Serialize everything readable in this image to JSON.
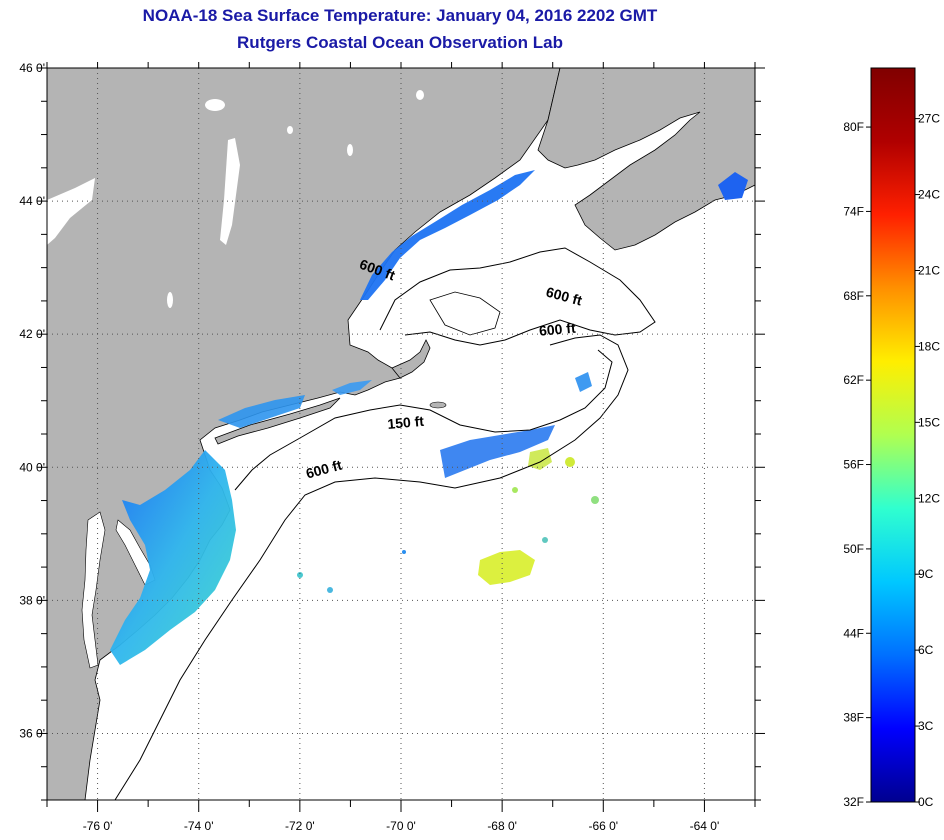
{
  "title": {
    "line1": "NOAA-18 Sea Surface Temperature:  January 04, 2016 2202 GMT",
    "line2": "Rutgers Coastal Ocean Observation Lab"
  },
  "map": {
    "lon_range": [
      -77,
      -63
    ],
    "lat_range": [
      35,
      46
    ],
    "lon_ticks": [
      {
        "lon": -76,
        "label": "-76 0'"
      },
      {
        "lon": -74,
        "label": "-74 0'"
      },
      {
        "lon": -72,
        "label": "-72 0'"
      },
      {
        "lon": -70,
        "label": "-70 0'"
      },
      {
        "lon": -68,
        "label": "-68 0'"
      },
      {
        "lon": -66,
        "label": "-66 0'"
      },
      {
        "lon": -64,
        "label": "-64 0'"
      }
    ],
    "lat_ticks": [
      {
        "lat": 46,
        "label": "46 0'"
      },
      {
        "lat": 44,
        "label": "44 0'"
      },
      {
        "lat": 42,
        "label": "42 0'"
      },
      {
        "lat": 40,
        "label": "40 0'"
      },
      {
        "lat": 38,
        "label": "38 0'"
      },
      {
        "lat": 36,
        "label": "36 0'"
      }
    ],
    "contour_labels": [
      {
        "text": "600 ft",
        "lon": -70.5,
        "lat": 42.9
      },
      {
        "text": "600 ft",
        "lon": -66.8,
        "lat": 42.5
      },
      {
        "text": "600 ft",
        "lon": -66.9,
        "lat": 42.0
      },
      {
        "text": "150 ft",
        "lon": -69.9,
        "lat": 40.6
      },
      {
        "text": "600 ft",
        "lon": -71.5,
        "lat": 39.9
      }
    ],
    "colors": {
      "land": "#b4b4b4",
      "ocean": "#ffffff",
      "lakes": "#ffffff",
      "grid": "#555555",
      "contour": "#000000"
    }
  },
  "colorbar": {
    "fahrenheit_labels": [
      "80F",
      "74F",
      "68F",
      "62F",
      "56F",
      "50F",
      "44F",
      "38F",
      "32F"
    ],
    "celsius_labels": [
      "27C",
      "24C",
      "21C",
      "18C",
      "15C",
      "12C",
      "9C",
      "6C",
      "3C",
      "0C"
    ],
    "range_c": [
      0,
      29
    ],
    "colors": [
      "#00008f",
      "#0000ff",
      "#0070ff",
      "#00c8ff",
      "#30ffcf",
      "#b0ff50",
      "#ffee00",
      "#ff9000",
      "#ff2000",
      "#b00000",
      "#800000"
    ]
  }
}
